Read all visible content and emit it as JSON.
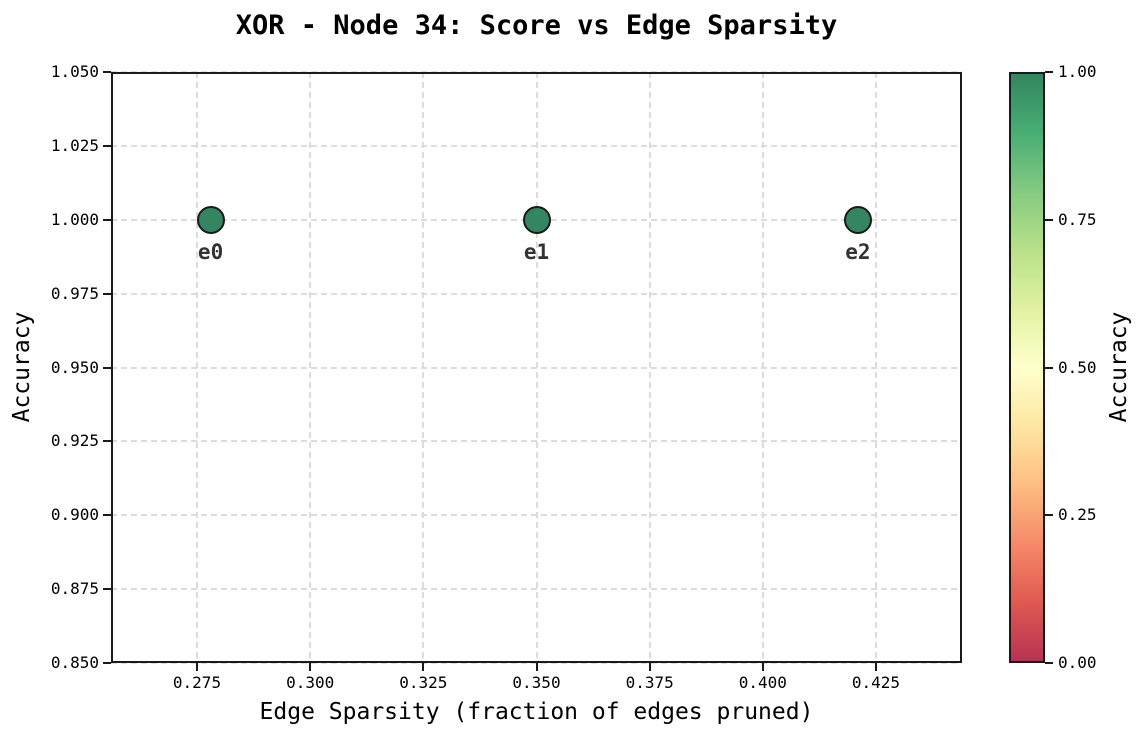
{
  "figure": {
    "background": "#ffffff"
  },
  "chart_data": {
    "type": "scatter",
    "title": "XOR - Node 34: Score vs Edge Sparsity",
    "xlabel": "Edge Sparsity (fraction of edges pruned)",
    "ylabel": "Accuracy",
    "xlim": [
      0.256,
      0.444
    ],
    "ylim": [
      0.85,
      1.05
    ],
    "xtick_values": [
      0.275,
      0.3,
      0.325,
      0.35,
      0.375,
      0.4,
      0.425
    ],
    "xtick_labels": [
      "0.275",
      "0.300",
      "0.325",
      "0.350",
      "0.375",
      "0.400",
      "0.425"
    ],
    "ytick_values": [
      0.85,
      0.875,
      0.9,
      0.925,
      0.95,
      0.975,
      1.0,
      1.025,
      1.05
    ],
    "ytick_labels": [
      "0.850",
      "0.875",
      "0.900",
      "0.925",
      "0.950",
      "0.975",
      "1.000",
      "1.025",
      "1.050"
    ],
    "grid": true,
    "legend": "none",
    "points": [
      {
        "label": "e0",
        "x": 0.278,
        "y": 1.0,
        "color_value": 1.0
      },
      {
        "label": "e1",
        "x": 0.35,
        "y": 1.0,
        "color_value": 1.0
      },
      {
        "label": "e2",
        "x": 0.421,
        "y": 1.0,
        "color_value": 1.0
      }
    ],
    "colorbar": {
      "label": "Accuracy",
      "tick_values": [
        0.0,
        0.25,
        0.5,
        0.75,
        1.0
      ],
      "tick_labels": [
        "0.00",
        "0.25",
        "0.50",
        "0.75",
        "1.00"
      ],
      "colormap": "RdYlGn",
      "vmin": 0.0,
      "vmax": 1.0
    },
    "colors": {
      "marker_edge": "#1a1a1a",
      "grid": "#dcdcdc",
      "spine": "#1a1a1a",
      "point_label": "#333333",
      "text": "#000000",
      "cmap_stops": [
        "#b73352",
        "#df5952",
        "#f68a69",
        "#fdbe81",
        "#fee6a2",
        "#ffffcc",
        "#e1f2a2",
        "#b8e188",
        "#85ca82",
        "#48ad73",
        "#33865f"
      ]
    }
  }
}
